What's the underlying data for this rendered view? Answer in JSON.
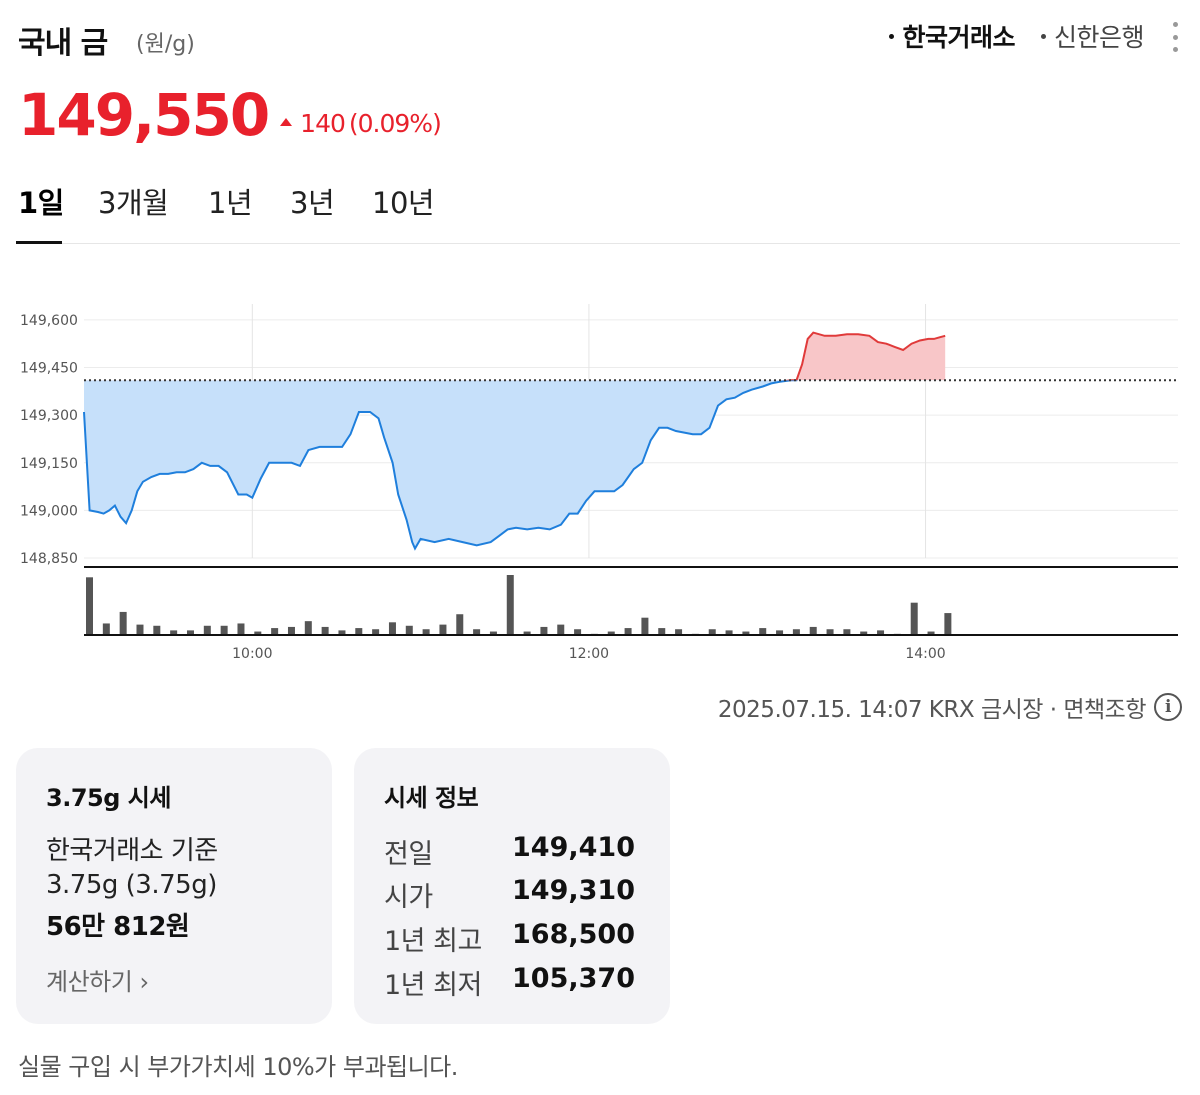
{
  "header": {
    "title": "국내 금",
    "unit": "(원/g)",
    "sources": [
      {
        "label": "한국거래소",
        "active": true
      },
      {
        "label": "신한은행",
        "active": false
      }
    ],
    "more_icon": "more-vertical-icon"
  },
  "quote": {
    "price": "149,550",
    "change": "140",
    "change_pct": "(0.09%)",
    "direction": "up",
    "up_color": "#e8212c",
    "down_color": "#1e7ad9"
  },
  "period_tabs": [
    {
      "label": "1일",
      "active": true
    },
    {
      "label": "3개월",
      "active": false
    },
    {
      "label": "1년",
      "active": false
    },
    {
      "label": "3년",
      "active": false
    },
    {
      "label": "10년",
      "active": false
    }
  ],
  "chart_data": {
    "type": "area",
    "baseline": 149410,
    "ylim": [
      148850,
      149650
    ],
    "y_ticks": [
      149600,
      149450,
      149300,
      149150,
      149000,
      148850
    ],
    "y_tick_labels": [
      "149,600",
      "149,450",
      "149,300",
      "149,150",
      "149,000",
      "148,850"
    ],
    "x_ticks": [
      "10:00",
      "12:00",
      "14:00"
    ],
    "x_range": [
      "09:00",
      "15:30"
    ],
    "series": [
      {
        "values": [
          [
            "09:00",
            149310
          ],
          [
            "09:02",
            149000
          ],
          [
            "09:05",
            148995
          ],
          [
            "09:07",
            148990
          ],
          [
            "09:09",
            149000
          ],
          [
            "09:11",
            149015
          ],
          [
            "09:13",
            148980
          ],
          [
            "09:15",
            148960
          ],
          [
            "09:17",
            149000
          ],
          [
            "09:19",
            149060
          ],
          [
            "09:21",
            149090
          ],
          [
            "09:24",
            149105
          ],
          [
            "09:27",
            149115
          ],
          [
            "09:30",
            149115
          ],
          [
            "09:33",
            149120
          ],
          [
            "09:36",
            149120
          ],
          [
            "09:39",
            149130
          ],
          [
            "09:42",
            149150
          ],
          [
            "09:45",
            149140
          ],
          [
            "09:48",
            149140
          ],
          [
            "09:51",
            149120
          ],
          [
            "09:55",
            149050
          ],
          [
            "09:58",
            149050
          ],
          [
            "10:00",
            149040
          ],
          [
            "10:03",
            149100
          ],
          [
            "10:06",
            149150
          ],
          [
            "10:10",
            149150
          ],
          [
            "10:14",
            149150
          ],
          [
            "10:17",
            149140
          ],
          [
            "10:20",
            149190
          ],
          [
            "10:24",
            149200
          ],
          [
            "10:28",
            149200
          ],
          [
            "10:32",
            149200
          ],
          [
            "10:35",
            149240
          ],
          [
            "10:38",
            149310
          ],
          [
            "10:42",
            149310
          ],
          [
            "10:45",
            149290
          ],
          [
            "10:47",
            149230
          ],
          [
            "10:50",
            149150
          ],
          [
            "10:52",
            149050
          ],
          [
            "10:55",
            148970
          ],
          [
            "10:57",
            148900
          ],
          [
            "10:58",
            148880
          ],
          [
            "11:00",
            148910
          ],
          [
            "11:05",
            148900
          ],
          [
            "11:10",
            148910
          ],
          [
            "11:15",
            148900
          ],
          [
            "11:20",
            148890
          ],
          [
            "11:25",
            148900
          ],
          [
            "11:28",
            148920
          ],
          [
            "11:31",
            148940
          ],
          [
            "11:34",
            148945
          ],
          [
            "11:38",
            148940
          ],
          [
            "11:42",
            148945
          ],
          [
            "11:46",
            148940
          ],
          [
            "11:50",
            148955
          ],
          [
            "11:53",
            148990
          ],
          [
            "11:56",
            148990
          ],
          [
            "11:59",
            149030
          ],
          [
            "12:02",
            149060
          ],
          [
            "12:06",
            149060
          ],
          [
            "12:09",
            149060
          ],
          [
            "12:12",
            149080
          ],
          [
            "12:16",
            149130
          ],
          [
            "12:19",
            149150
          ],
          [
            "12:22",
            149220
          ],
          [
            "12:25",
            149260
          ],
          [
            "12:28",
            149260
          ],
          [
            "12:31",
            149250
          ],
          [
            "12:34",
            149245
          ],
          [
            "12:37",
            149240
          ],
          [
            "12:40",
            149240
          ],
          [
            "12:43",
            149260
          ],
          [
            "12:46",
            149330
          ],
          [
            "12:49",
            149350
          ],
          [
            "12:52",
            149355
          ],
          [
            "12:55",
            149370
          ],
          [
            "12:58",
            149380
          ],
          [
            "13:02",
            149390
          ],
          [
            "13:05",
            149400
          ],
          [
            "13:08",
            149405
          ],
          [
            "13:12",
            149410
          ],
          [
            "13:14",
            149410
          ],
          [
            "13:16",
            149460
          ],
          [
            "13:18",
            149540
          ],
          [
            "13:20",
            149560
          ],
          [
            "13:24",
            149550
          ],
          [
            "13:28",
            149550
          ],
          [
            "13:32",
            149555
          ],
          [
            "13:36",
            149555
          ],
          [
            "13:40",
            149550
          ],
          [
            "13:43",
            149530
          ],
          [
            "13:46",
            149525
          ],
          [
            "13:49",
            149515
          ],
          [
            "13:52",
            149505
          ],
          [
            "13:55",
            149525
          ],
          [
            "13:58",
            149535
          ],
          [
            "14:01",
            149540
          ],
          [
            "14:03",
            149540
          ],
          [
            "14:05",
            149545
          ],
          [
            "14:07",
            149550
          ]
        ]
      }
    ],
    "volume": {
      "times": [
        "09:00",
        "09:06",
        "09:12",
        "09:18",
        "09:24",
        "09:30",
        "09:36",
        "09:42",
        "09:48",
        "09:54",
        "10:00",
        "10:06",
        "10:12",
        "10:18",
        "10:24",
        "10:30",
        "10:36",
        "10:42",
        "10:48",
        "10:54",
        "11:00",
        "11:06",
        "11:12",
        "11:18",
        "11:24",
        "11:30",
        "11:36",
        "11:42",
        "11:48",
        "11:54",
        "12:00",
        "12:06",
        "12:12",
        "12:18",
        "12:24",
        "12:30",
        "12:36",
        "12:42",
        "12:48",
        "12:54",
        "13:00",
        "13:06",
        "13:12",
        "13:18",
        "13:24",
        "13:30",
        "13:36",
        "13:42",
        "13:48",
        "13:54",
        "14:00",
        "14:06"
      ],
      "values": [
        100,
        20,
        40,
        18,
        16,
        8,
        8,
        16,
        16,
        20,
        6,
        12,
        14,
        24,
        14,
        8,
        12,
        10,
        22,
        16,
        10,
        18,
        36,
        10,
        6,
        104,
        6,
        14,
        18,
        10,
        2,
        6,
        12,
        30,
        12,
        10,
        2,
        10,
        8,
        6,
        12,
        8,
        10,
        14,
        10,
        10,
        6,
        8,
        2,
        56,
        6,
        38
      ],
      "color": "#555555"
    },
    "colors": {
      "up_line": "#e03a3a",
      "up_fill": "#f8c6c8",
      "down_line": "#1f7fdc",
      "down_fill": "#c6e0fa"
    }
  },
  "footnote": {
    "text": "2025.07.15. 14:07 KRX 금시장 · 면책조항",
    "info_icon": "info-icon"
  },
  "card_unit": {
    "title": "3.75g 시세",
    "basis": "한국거래소 기준",
    "weight": "3.75g (3.75g)",
    "amount": "56만 812원",
    "calc_link": "계산하기 ›"
  },
  "card_info": {
    "title": "시세 정보",
    "rows": [
      {
        "label": "전일",
        "value": "149,410"
      },
      {
        "label": "시가",
        "value": "149,310"
      },
      {
        "label": "1년 최고",
        "value": "168,500"
      },
      {
        "label": "1년 최저",
        "value": "105,370"
      }
    ]
  },
  "vat_note": "실물 구입 시 부가가치세 10%가 부과됩니다."
}
